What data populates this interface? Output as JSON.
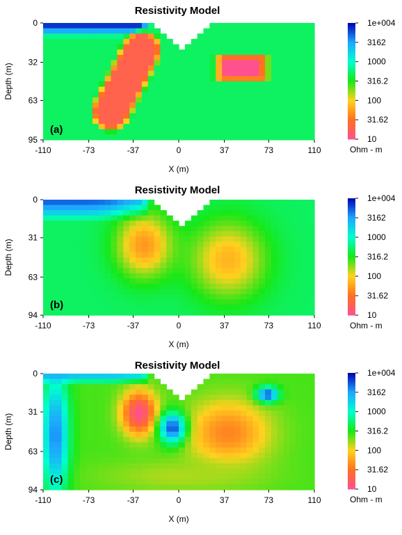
{
  "colors": {
    "scale": [
      "#ff5090",
      "#ff7020",
      "#ffd21e",
      "#17e817",
      "#00ffd0",
      "#1ea6ff",
      "#0000b0"
    ],
    "background": "#00ffee"
  },
  "chart_data": [
    {
      "type": "heatmap",
      "panel_label": "(a)",
      "title": "Resistivity Model",
      "xlabel": "X (m)",
      "ylabel": "Depth (m)",
      "xlim": [
        -110,
        110
      ],
      "ylim": [
        0,
        95
      ],
      "x_ticks": [
        "-110",
        "-73",
        "-37",
        "0",
        "37",
        "73",
        "110"
      ],
      "y_ticks": [
        "0",
        "32",
        "63",
        "95"
      ],
      "colorbar": {
        "ticks": [
          "1e+004",
          "3162",
          "1000",
          "316.2",
          "100",
          "31.62",
          "10"
        ],
        "unit": "Ohm - m",
        "log10_range": [
          1,
          4
        ]
      },
      "background_ohm": 500,
      "anomalies": [
        {
          "shape": "band",
          "x0": -55,
          "y0": 72,
          "x1": -30,
          "y1": 22,
          "half_width": 12,
          "core_ohm": 20
        },
        {
          "shape": "box",
          "x_range": [
            27,
            75
          ],
          "y_range": [
            24,
            49
          ],
          "core_ohm": 10
        }
      ],
      "surface_gap": [
        [
          -20,
          0
        ],
        [
          3,
          23
        ],
        [
          30,
          0
        ]
      ],
      "top_layer": {
        "x_range": [
          -110,
          -22
        ],
        "depth": 11,
        "ohm": 10000
      },
      "blocky": true
    },
    {
      "type": "heatmap",
      "panel_label": "(b)",
      "title": "Resistivity Model",
      "xlabel": "X (m)",
      "ylabel": "Depth (m)",
      "xlim": [
        -110,
        110
      ],
      "ylim": [
        0,
        94
      ],
      "x_ticks": [
        "-110",
        "-73",
        "-37",
        "0",
        "37",
        "73",
        "110"
      ],
      "y_ticks": [
        "0",
        "31",
        "63",
        "94"
      ],
      "colorbar": {
        "ticks": [
          "1e+004",
          "3162",
          "1000",
          "316.2",
          "100",
          "31.62",
          "10"
        ],
        "unit": "Ohm - m",
        "log10_range": [
          1,
          4
        ]
      },
      "background_ohm": 500,
      "anomalies": [
        {
          "shape": "blob",
          "x": -28,
          "y": 37,
          "rx": 26,
          "ry": 30,
          "core_ohm": 50
        },
        {
          "shape": "blob",
          "x": 40,
          "y": 49,
          "rx": 35,
          "ry": 36,
          "core_ohm": 70
        }
      ],
      "surface_gap": [
        [
          -20,
          0
        ],
        [
          3,
          23
        ],
        [
          30,
          0
        ]
      ],
      "top_layer": {
        "x_range": [
          -110,
          -22
        ],
        "depth": 16,
        "ohm": 6000
      },
      "blocky": false
    },
    {
      "type": "heatmap",
      "panel_label": "(c)",
      "title": "Resistivity Model",
      "xlabel": "X (m)",
      "ylabel": "Depth (m)",
      "xlim": [
        -110,
        110
      ],
      "ylim": [
        0,
        94
      ],
      "x_ticks": [
        "-110",
        "-73",
        "-37",
        "0",
        "37",
        "73",
        "110"
      ],
      "y_ticks": [
        "0",
        "31",
        "63",
        "94"
      ],
      "colorbar": {
        "ticks": [
          "1e+004",
          "3162",
          "1000",
          "316.2",
          "100",
          "31.62",
          "10"
        ],
        "unit": "Ohm - m",
        "log10_range": [
          1,
          4
        ]
      },
      "background_ohm": 250,
      "anomalies": [
        {
          "shape": "blob",
          "x": -32,
          "y": 32,
          "rx": 16,
          "ry": 20,
          "core_ohm": 10
        },
        {
          "shape": "blob",
          "x": 40,
          "y": 48,
          "rx": 38,
          "ry": 30,
          "core_ohm": 40
        },
        {
          "shape": "blob",
          "x": 0,
          "y": 83,
          "rx": 75,
          "ry": 15,
          "core_ohm": 150
        },
        {
          "shape": "blob",
          "x": -5,
          "y": 44,
          "rx": 12,
          "ry": 14,
          "core_ohm": 6000
        },
        {
          "shape": "blob",
          "x": 72,
          "y": 17,
          "rx": 10,
          "ry": 7,
          "core_ohm": 6000
        },
        {
          "shape": "blob",
          "x": -100,
          "y": 50,
          "rx": 12,
          "ry": 55,
          "core_ohm": 4000
        }
      ],
      "surface_gap": [
        [
          -20,
          0
        ],
        [
          3,
          23
        ],
        [
          30,
          0
        ]
      ],
      "top_layer": {
        "x_range": [
          -110,
          -22
        ],
        "depth": 8,
        "ohm": 3000
      },
      "blocky": true
    }
  ]
}
